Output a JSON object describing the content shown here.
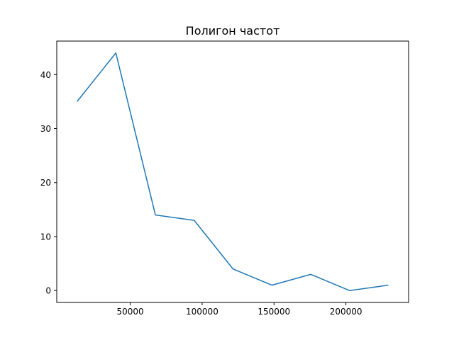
{
  "chart_data": {
    "type": "line",
    "title": "Полигон частот",
    "xlabel": "",
    "ylabel": "",
    "x": [
      13000,
      40000,
      67500,
      94500,
      121500,
      148500,
      175500,
      202500,
      229500
    ],
    "series": [
      {
        "values": [
          35,
          44,
          14,
          13,
          4,
          1,
          3,
          0,
          1
        ]
      }
    ],
    "xlim": [
      -1100,
      243600
    ],
    "ylim": [
      -2.2,
      46.2
    ],
    "xticks": [
      50000,
      100000,
      150000,
      200000
    ],
    "xtick_labels": [
      "50000",
      "100000",
      "150000",
      "200000"
    ],
    "yticks": [
      0,
      10,
      20,
      30,
      40
    ],
    "ytick_labels": [
      "0",
      "10",
      "20",
      "30",
      "40"
    ],
    "grid": false,
    "legend": "none",
    "colors": {
      "line": "#1f77b4",
      "axes": "#000000",
      "background": "#ffffff"
    }
  }
}
